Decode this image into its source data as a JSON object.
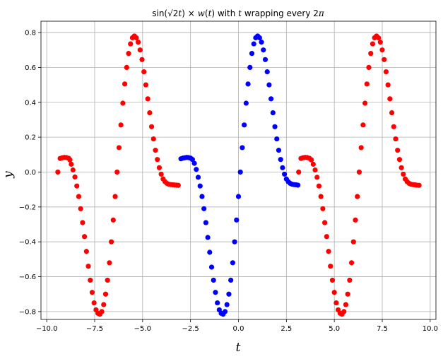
{
  "chart_data": {
    "type": "scatter",
    "title": {
      "parts": [
        "sin(",
        "√2",
        "t",
        ") × ",
        "w",
        "(",
        "t",
        ") with ",
        "t",
        " wrapping every 2",
        "π"
      ],
      "italic": [
        false,
        false,
        true,
        false,
        true,
        false,
        true,
        false,
        true,
        false,
        true
      ]
    },
    "xlabel": "t",
    "ylabel": "y",
    "xlim": [
      -10.3,
      10.3
    ],
    "ylim": [
      -0.845,
      0.865
    ],
    "xticks": [
      -10.0,
      -7.5,
      -5.0,
      -2.5,
      0.0,
      2.5,
      5.0,
      7.5,
      10.0
    ],
    "xtick_labels": [
      "−10.0",
      "−7.5",
      "−5.0",
      "−2.5",
      "0.0",
      "2.5",
      "5.0",
      "7.5",
      "10.0"
    ],
    "yticks": [
      -0.8,
      -0.6,
      -0.4,
      -0.2,
      0.0,
      0.2,
      0.4,
      0.6,
      0.8
    ],
    "ytick_labels": [
      "−0.8",
      "−0.6",
      "−0.4",
      "−0.2",
      "0.0",
      "0.2",
      "0.4",
      "0.6",
      "0.8"
    ],
    "grid": true,
    "colors": {
      "wrapped": "#ff0000",
      "base": "#0000ff",
      "grid": "#b0b0b0"
    },
    "series": [
      {
        "color": "#ff0000",
        "x": [
          -9.42,
          -9.3,
          -9.19,
          -9.08,
          -8.97,
          -8.86,
          -8.79,
          -8.72,
          -8.63,
          -8.53,
          -8.43,
          -8.33,
          -8.23,
          -8.13,
          -8.03,
          -7.93,
          -7.83,
          -7.73,
          -7.63,
          -7.53,
          -7.43,
          -7.33,
          -7.23,
          -7.13,
          -7.03,
          -6.93,
          -6.83,
          -6.73,
          -6.63,
          -6.53,
          -6.43,
          -6.33,
          -6.23,
          -6.13,
          -6.03,
          -5.93,
          -5.83,
          -5.73,
          -5.63,
          -5.53,
          -5.43,
          -5.33,
          -5.23,
          -5.13,
          -5.03,
          -4.93,
          -4.83,
          -4.73,
          -4.63,
          -4.53,
          -4.43,
          -4.33,
          -4.23,
          -4.13,
          -4.03,
          -3.93,
          -3.83,
          -3.73,
          -3.63,
          -3.53,
          -3.43,
          -3.33,
          -3.23,
          -3.14
        ],
        "y": [
          0.0,
          0.078,
          0.082,
          0.084,
          0.083,
          0.079,
          0.07,
          0.045,
          0.012,
          -0.028,
          -0.08,
          -0.14,
          -0.21,
          -0.29,
          -0.37,
          -0.455,
          -0.54,
          -0.62,
          -0.69,
          -0.75,
          -0.79,
          -0.81,
          -0.815,
          -0.8,
          -0.76,
          -0.7,
          -0.62,
          -0.52,
          -0.4,
          -0.275,
          -0.14,
          0.0,
          0.14,
          0.27,
          0.395,
          0.505,
          0.6,
          0.68,
          0.735,
          0.77,
          0.78,
          0.77,
          0.745,
          0.7,
          0.645,
          0.575,
          0.5,
          0.42,
          0.34,
          0.26,
          0.19,
          0.125,
          0.072,
          0.025,
          -0.012,
          -0.04,
          -0.055,
          -0.065,
          -0.07,
          -0.072,
          -0.073,
          -0.074,
          -0.075,
          -0.076
        ]
      },
      {
        "color": "#0000ff",
        "x": [
          -3.0,
          -2.9,
          -2.8,
          -2.7,
          -2.6,
          -2.5,
          -2.4,
          -2.3,
          -2.2,
          -2.1,
          -2.0,
          -1.9,
          -1.8,
          -1.7,
          -1.6,
          -1.5,
          -1.4,
          -1.3,
          -1.2,
          -1.1,
          -1.0,
          -0.9,
          -0.8,
          -0.7,
          -0.6,
          -0.5,
          -0.4,
          -0.3,
          -0.2,
          -0.1,
          0.0,
          0.1,
          0.2,
          0.3,
          0.4,
          0.5,
          0.6,
          0.7,
          0.8,
          0.9,
          1.0,
          1.1,
          1.2,
          1.3,
          1.4,
          1.5,
          1.6,
          1.7,
          1.8,
          1.9,
          2.0,
          2.1,
          2.2,
          2.3,
          2.4,
          2.5,
          2.6,
          2.7,
          2.8,
          2.9,
          3.0,
          3.1
        ],
        "y": [
          0.076,
          0.08,
          0.082,
          0.084,
          0.083,
          0.08,
          0.072,
          0.05,
          0.015,
          -0.03,
          -0.08,
          -0.14,
          -0.21,
          -0.29,
          -0.375,
          -0.46,
          -0.545,
          -0.62,
          -0.69,
          -0.75,
          -0.79,
          -0.81,
          -0.815,
          -0.8,
          -0.76,
          -0.7,
          -0.62,
          -0.52,
          -0.4,
          -0.275,
          -0.14,
          0.0,
          0.14,
          0.27,
          0.395,
          0.505,
          0.6,
          0.68,
          0.735,
          0.77,
          0.78,
          0.77,
          0.745,
          0.7,
          0.645,
          0.575,
          0.5,
          0.42,
          0.34,
          0.26,
          0.19,
          0.125,
          0.072,
          0.025,
          -0.012,
          -0.04,
          -0.055,
          -0.065,
          -0.07,
          -0.072,
          -0.073,
          -0.075
        ]
      },
      {
        "color": "#ff0000",
        "x": [
          3.14,
          3.26,
          3.37,
          3.48,
          3.59,
          3.7,
          3.8,
          3.9,
          4.0,
          4.1,
          4.2,
          4.3,
          4.4,
          4.5,
          4.6,
          4.7,
          4.8,
          4.9,
          5.0,
          5.1,
          5.2,
          5.3,
          5.4,
          5.5,
          5.6,
          5.7,
          5.8,
          5.9,
          6.0,
          6.1,
          6.2,
          6.3,
          6.4,
          6.5,
          6.6,
          6.7,
          6.8,
          6.9,
          7.0,
          7.1,
          7.2,
          7.3,
          7.4,
          7.5,
          7.6,
          7.7,
          7.8,
          7.9,
          8.0,
          8.1,
          8.2,
          8.3,
          8.4,
          8.5,
          8.6,
          8.7,
          8.8,
          8.9,
          9.0,
          9.1,
          9.2,
          9.3,
          9.42
        ],
        "y": [
          0.0,
          0.078,
          0.082,
          0.084,
          0.083,
          0.079,
          0.07,
          0.045,
          0.012,
          -0.03,
          -0.08,
          -0.14,
          -0.21,
          -0.29,
          -0.37,
          -0.455,
          -0.54,
          -0.62,
          -0.69,
          -0.75,
          -0.79,
          -0.81,
          -0.815,
          -0.8,
          -0.76,
          -0.7,
          -0.62,
          -0.52,
          -0.4,
          -0.275,
          -0.14,
          0.0,
          0.14,
          0.27,
          0.395,
          0.505,
          0.6,
          0.68,
          0.735,
          0.77,
          0.78,
          0.77,
          0.745,
          0.7,
          0.645,
          0.575,
          0.5,
          0.42,
          0.34,
          0.26,
          0.19,
          0.125,
          0.072,
          0.025,
          -0.012,
          -0.04,
          -0.055,
          -0.065,
          -0.07,
          -0.072,
          -0.073,
          -0.075,
          -0.076
        ]
      }
    ]
  }
}
